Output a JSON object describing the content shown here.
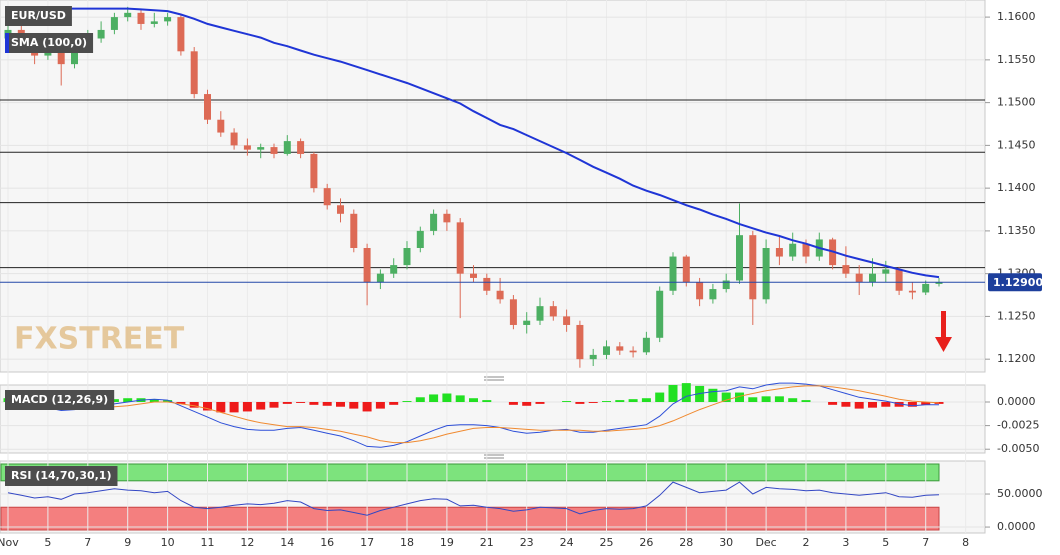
{
  "chart_data": [
    {
      "type": "candlestick",
      "title": "EUR/USD",
      "ylim": [
        1.1185,
        1.162
      ],
      "yticks": [
        {
          "value": 1.12,
          "label": "1.1200"
        },
        {
          "value": 1.125,
          "label": "1.1250"
        },
        {
          "value": 1.13,
          "label": "1.1300"
        },
        {
          "value": 1.135,
          "label": "1.1350"
        },
        {
          "value": 1.14,
          "label": "1.1400"
        },
        {
          "value": 1.145,
          "label": "1.1450"
        },
        {
          "value": 1.15,
          "label": "1.1500"
        },
        {
          "value": 1.155,
          "label": "1.1550"
        },
        {
          "value": 1.16,
          "label": "1.1600"
        }
      ],
      "grid": true,
      "up_color": "#4caf62",
      "down_color": "#dd6a55",
      "levels": [
        1.1503,
        1.1442,
        1.1383,
        1.1307
      ],
      "price_line": {
        "value": 1.129,
        "label": "1.12900"
      },
      "watermark": "FXSTREET",
      "ohlc": [
        [
          1.1575,
          1.16,
          1.1565,
          1.1585
        ],
        [
          1.1585,
          1.159,
          1.156,
          1.157
        ],
        [
          1.157,
          1.1575,
          1.1545,
          1.1555
        ],
        [
          1.1555,
          1.157,
          1.155,
          1.156
        ],
        [
          1.156,
          1.1565,
          1.152,
          1.1545
        ],
        [
          1.1545,
          1.158,
          1.154,
          1.157
        ],
        [
          1.157,
          1.1585,
          1.1565,
          1.1575
        ],
        [
          1.1575,
          1.1595,
          1.157,
          1.1585
        ],
        [
          1.1585,
          1.1605,
          1.158,
          1.16
        ],
        [
          1.16,
          1.1612,
          1.1595,
          1.1605
        ],
        [
          1.1605,
          1.161,
          1.1585,
          1.1592
        ],
        [
          1.1592,
          1.1605,
          1.1588,
          1.1595
        ],
        [
          1.1595,
          1.1605,
          1.159,
          1.16
        ],
        [
          1.16,
          1.1602,
          1.1555,
          1.156
        ],
        [
          1.156,
          1.1565,
          1.1505,
          1.151
        ],
        [
          1.151,
          1.1515,
          1.1475,
          1.148
        ],
        [
          1.148,
          1.149,
          1.146,
          1.1465
        ],
        [
          1.1465,
          1.147,
          1.1445,
          1.145
        ],
        [
          1.145,
          1.1458,
          1.1438,
          1.1445
        ],
        [
          1.1445,
          1.1452,
          1.1435,
          1.1448
        ],
        [
          1.1448,
          1.1452,
          1.1435,
          1.144
        ],
        [
          1.144,
          1.1462,
          1.1438,
          1.1455
        ],
        [
          1.1455,
          1.1458,
          1.1435,
          1.144
        ],
        [
          1.144,
          1.1442,
          1.1395,
          1.14
        ],
        [
          1.14,
          1.1405,
          1.1375,
          1.138
        ],
        [
          1.138,
          1.1388,
          1.136,
          1.137
        ],
        [
          1.137,
          1.1375,
          1.1325,
          1.133
        ],
        [
          1.133,
          1.1335,
          1.1263,
          1.129
        ],
        [
          1.129,
          1.1305,
          1.1282,
          1.13
        ],
        [
          1.13,
          1.1318,
          1.1295,
          1.131
        ],
        [
          1.131,
          1.1338,
          1.1305,
          1.133
        ],
        [
          1.133,
          1.1355,
          1.1325,
          1.135
        ],
        [
          1.135,
          1.1375,
          1.1345,
          1.137
        ],
        [
          1.137,
          1.1375,
          1.135,
          1.136
        ],
        [
          1.136,
          1.1365,
          1.1248,
          1.13
        ],
        [
          1.13,
          1.131,
          1.129,
          1.1295
        ],
        [
          1.1295,
          1.13,
          1.1275,
          1.128
        ],
        [
          1.128,
          1.1295,
          1.1265,
          1.127
        ],
        [
          1.127,
          1.1275,
          1.1235,
          1.124
        ],
        [
          1.124,
          1.1255,
          1.123,
          1.1245
        ],
        [
          1.1245,
          1.1272,
          1.124,
          1.1262
        ],
        [
          1.1262,
          1.1268,
          1.1245,
          1.125
        ],
        [
          1.125,
          1.1258,
          1.1232,
          1.124
        ],
        [
          1.124,
          1.1245,
          1.119,
          1.12
        ],
        [
          1.12,
          1.1212,
          1.1192,
          1.1205
        ],
        [
          1.1205,
          1.1222,
          1.12,
          1.1215
        ],
        [
          1.1215,
          1.122,
          1.1205,
          1.121
        ],
        [
          1.121,
          1.1215,
          1.1202,
          1.1208
        ],
        [
          1.1208,
          1.1232,
          1.1205,
          1.1225
        ],
        [
          1.1225,
          1.1285,
          1.122,
          1.128
        ],
        [
          1.128,
          1.1325,
          1.1275,
          1.132
        ],
        [
          1.132,
          1.1322,
          1.1285,
          1.129
        ],
        [
          1.129,
          1.1295,
          1.1262,
          1.127
        ],
        [
          1.127,
          1.1288,
          1.1265,
          1.1282
        ],
        [
          1.1282,
          1.13,
          1.1278,
          1.1292
        ],
        [
          1.1292,
          1.1382,
          1.1288,
          1.1345
        ],
        [
          1.1345,
          1.135,
          1.124,
          1.127
        ],
        [
          1.127,
          1.134,
          1.1265,
          1.133
        ],
        [
          1.133,
          1.1345,
          1.131,
          1.132
        ],
        [
          1.132,
          1.1348,
          1.1315,
          1.1335
        ],
        [
          1.1335,
          1.134,
          1.1312,
          1.132
        ],
        [
          1.132,
          1.1348,
          1.1315,
          1.134
        ],
        [
          1.134,
          1.1342,
          1.1305,
          1.131
        ],
        [
          1.131,
          1.1332,
          1.1295,
          1.13
        ],
        [
          1.13,
          1.131,
          1.1275,
          1.129
        ],
        [
          1.129,
          1.1318,
          1.1285,
          1.13
        ],
        [
          1.13,
          1.1315,
          1.129,
          1.1305
        ],
        [
          1.1305,
          1.1308,
          1.1275,
          1.128
        ],
        [
          1.128,
          1.129,
          1.127,
          1.1278
        ],
        [
          1.1278,
          1.1292,
          1.1275,
          1.1288
        ],
        [
          1.1288,
          1.1295,
          1.1285,
          1.129
        ],
        null,
        null
      ],
      "series": [
        {
          "name": "SMA (100,0)",
          "color": "#1f35d6",
          "values": [
            1.161,
            1.161,
            1.161,
            1.161,
            1.161,
            1.161,
            1.161,
            1.161,
            1.161,
            1.161,
            1.1609,
            1.1608,
            1.1607,
            1.1603,
            1.1598,
            1.1592,
            1.1588,
            1.1584,
            1.158,
            1.1576,
            1.157,
            1.1566,
            1.1561,
            1.1556,
            1.1552,
            1.1548,
            1.1543,
            1.1538,
            1.1533,
            1.1528,
            1.1523,
            1.1517,
            1.1511,
            1.1505,
            1.1499,
            1.149,
            1.1482,
            1.1474,
            1.1469,
            1.1462,
            1.1455,
            1.1448,
            1.1441,
            1.1433,
            1.1425,
            1.1418,
            1.1411,
            1.1403,
            1.1397,
            1.1392,
            1.1386,
            1.138,
            1.1375,
            1.1369,
            1.1364,
            1.1358,
            1.1353,
            1.1348,
            1.1344,
            1.1339,
            1.1335,
            1.133,
            1.1326,
            1.1321,
            1.1317,
            1.1313,
            1.1309,
            1.1305,
            1.1301,
            1.1298,
            1.1296,
            null,
            null
          ]
        }
      ]
    },
    {
      "type": "macd",
      "title": "MACD (12,26,9)",
      "ylim": [
        -0.0054,
        0.0018
      ],
      "yticks": [
        {
          "value": 0,
          "label": "0.0000"
        },
        {
          "value": -0.0025,
          "label": "-0.0025"
        },
        {
          "value": -0.005,
          "label": "-0.0050"
        }
      ],
      "up_color": "#22e022",
      "down_color": "#ee1a1a",
      "series": [
        {
          "name": "MACD",
          "color": "#2d4fd8",
          "values": [
            0.0002,
            0,
            -0.0003,
            -0.0006,
            -0.0009,
            -0.0008,
            -0.0006,
            -0.0004,
            -0.0002,
            0,
            0.0002,
            0.0003,
            0.0002,
            -0.0004,
            -0.001,
            -0.0016,
            -0.0022,
            -0.0026,
            -0.0029,
            -0.003,
            -0.003,
            -0.0028,
            -0.0027,
            -0.003,
            -0.0033,
            -0.0036,
            -0.0041,
            -0.0047,
            -0.0048,
            -0.0046,
            -0.0042,
            -0.0036,
            -0.003,
            -0.0025,
            -0.0024,
            -0.0024,
            -0.0025,
            -0.0027,
            -0.0031,
            -0.0033,
            -0.0032,
            -0.003,
            -0.0029,
            -0.0032,
            -0.0032,
            -0.003,
            -0.0028,
            -0.0026,
            -0.0024,
            -0.0015,
            -0.0002,
            0.0006,
            0.0009,
            0.0011,
            0.0012,
            0.0016,
            0.0014,
            0.0018,
            0.002,
            0.002,
            0.0019,
            0.0017,
            0.0013,
            0.0009,
            0.0005,
            0.0003,
            0.0001,
            -0.0002,
            -0.0004,
            -0.0003,
            -0.0003,
            null,
            null
          ]
        },
        {
          "name": "Signal",
          "color": "#f08a30",
          "values": [
            -0.0002,
            -0.0002,
            -0.0003,
            -0.0004,
            -0.0005,
            -0.0006,
            -0.0006,
            -0.0006,
            -0.0005,
            -0.0004,
            -0.0002,
            0,
            0,
            -0.0002,
            -0.0004,
            -0.0007,
            -0.0011,
            -0.0015,
            -0.0019,
            -0.0022,
            -0.0024,
            -0.0026,
            -0.0026,
            -0.0027,
            -0.0029,
            -0.0031,
            -0.0034,
            -0.0037,
            -0.0041,
            -0.0043,
            -0.0043,
            -0.0041,
            -0.0038,
            -0.0034,
            -0.0031,
            -0.0028,
            -0.0027,
            -0.0027,
            -0.0028,
            -0.0029,
            -0.003,
            -0.003,
            -0.003,
            -0.003,
            -0.0031,
            -0.0031,
            -0.003,
            -0.0029,
            -0.0028,
            -0.0025,
            -0.002,
            -0.0014,
            -0.0008,
            -0.0003,
            0.0002,
            0.0006,
            0.0009,
            0.0012,
            0.0014,
            0.0016,
            0.0017,
            0.0017,
            0.0016,
            0.0014,
            0.0012,
            0.0009,
            0.0006,
            0.0003,
            0.0001,
            0,
            -0.0001,
            null,
            null
          ]
        }
      ],
      "histogram": [
        0.0004,
        0.0002,
        0,
        -0.0002,
        -0.0004,
        -0.0002,
        0,
        0.0002,
        0.0003,
        0.0004,
        0.0004,
        0.0003,
        0.0002,
        -0.0002,
        -0.0006,
        -0.0009,
        -0.0011,
        -0.0011,
        -0.001,
        -0.0008,
        -0.0006,
        -0.0002,
        -0.0001,
        -0.0003,
        -0.0004,
        -0.0005,
        -0.0007,
        -0.001,
        -0.0007,
        -0.0003,
        0.0001,
        0.0005,
        0.0008,
        0.0009,
        0.0007,
        0.0004,
        0.0002,
        0,
        -0.0003,
        -0.0004,
        -0.0002,
        0,
        0.0001,
        -0.0002,
        -0.0001,
        0.0001,
        0.0002,
        0.0003,
        0.0004,
        0.001,
        0.0018,
        0.002,
        0.0017,
        0.0014,
        0.001,
        0.001,
        0.0005,
        0.0006,
        0.0006,
        0.0004,
        0.0002,
        0,
        -0.0003,
        -0.0005,
        -0.0007,
        -0.0006,
        -0.0005,
        -0.0005,
        -0.0005,
        -0.0003,
        -0.0002,
        null,
        null
      ]
    },
    {
      "type": "rsi",
      "title": "RSI (14,70,30,1)",
      "ylim": [
        -9,
        100
      ],
      "yticks": [
        {
          "value": 50,
          "label": "50.0000"
        },
        {
          "value": 0,
          "label": "0.0000"
        }
      ],
      "upper": 70,
      "lower": 30,
      "upper_color": "#7de37d",
      "lower_color": "#f47f7f",
      "categories": [
        "Nov",
        null,
        null,
        "5",
        null,
        null,
        "7",
        null,
        null,
        "9",
        null,
        null,
        "10",
        null,
        null,
        "11",
        null,
        null,
        "12",
        null,
        null,
        "14",
        null,
        null,
        "16",
        null,
        null,
        "17",
        null,
        null,
        "18",
        null,
        null,
        "19",
        null,
        null,
        "21",
        null,
        null,
        "23",
        null,
        null,
        "24",
        null,
        null,
        "25",
        null,
        null,
        "26",
        null,
        null,
        "28",
        null,
        null,
        "30",
        null,
        null,
        "Dec",
        null,
        null,
        "2",
        null,
        null,
        "3",
        null,
        null,
        "5",
        null,
        null,
        "7",
        null,
        null,
        "8"
      ],
      "series": [
        {
          "name": "RSI",
          "color": "#3347c4",
          "values": [
            52,
            48,
            44,
            46,
            42,
            50,
            52,
            55,
            58,
            56,
            55,
            52,
            54,
            40,
            30,
            28,
            30,
            33,
            35,
            34,
            36,
            40,
            38,
            28,
            25,
            26,
            22,
            18,
            25,
            30,
            35,
            40,
            43,
            42,
            32,
            33,
            30,
            28,
            24,
            26,
            30,
            29,
            28,
            20,
            25,
            28,
            27,
            28,
            32,
            48,
            68,
            60,
            52,
            54,
            56,
            68,
            50,
            60,
            58,
            57,
            55,
            56,
            52,
            50,
            48,
            50,
            52,
            46,
            45,
            48,
            49,
            null,
            null
          ]
        }
      ]
    }
  ]
}
